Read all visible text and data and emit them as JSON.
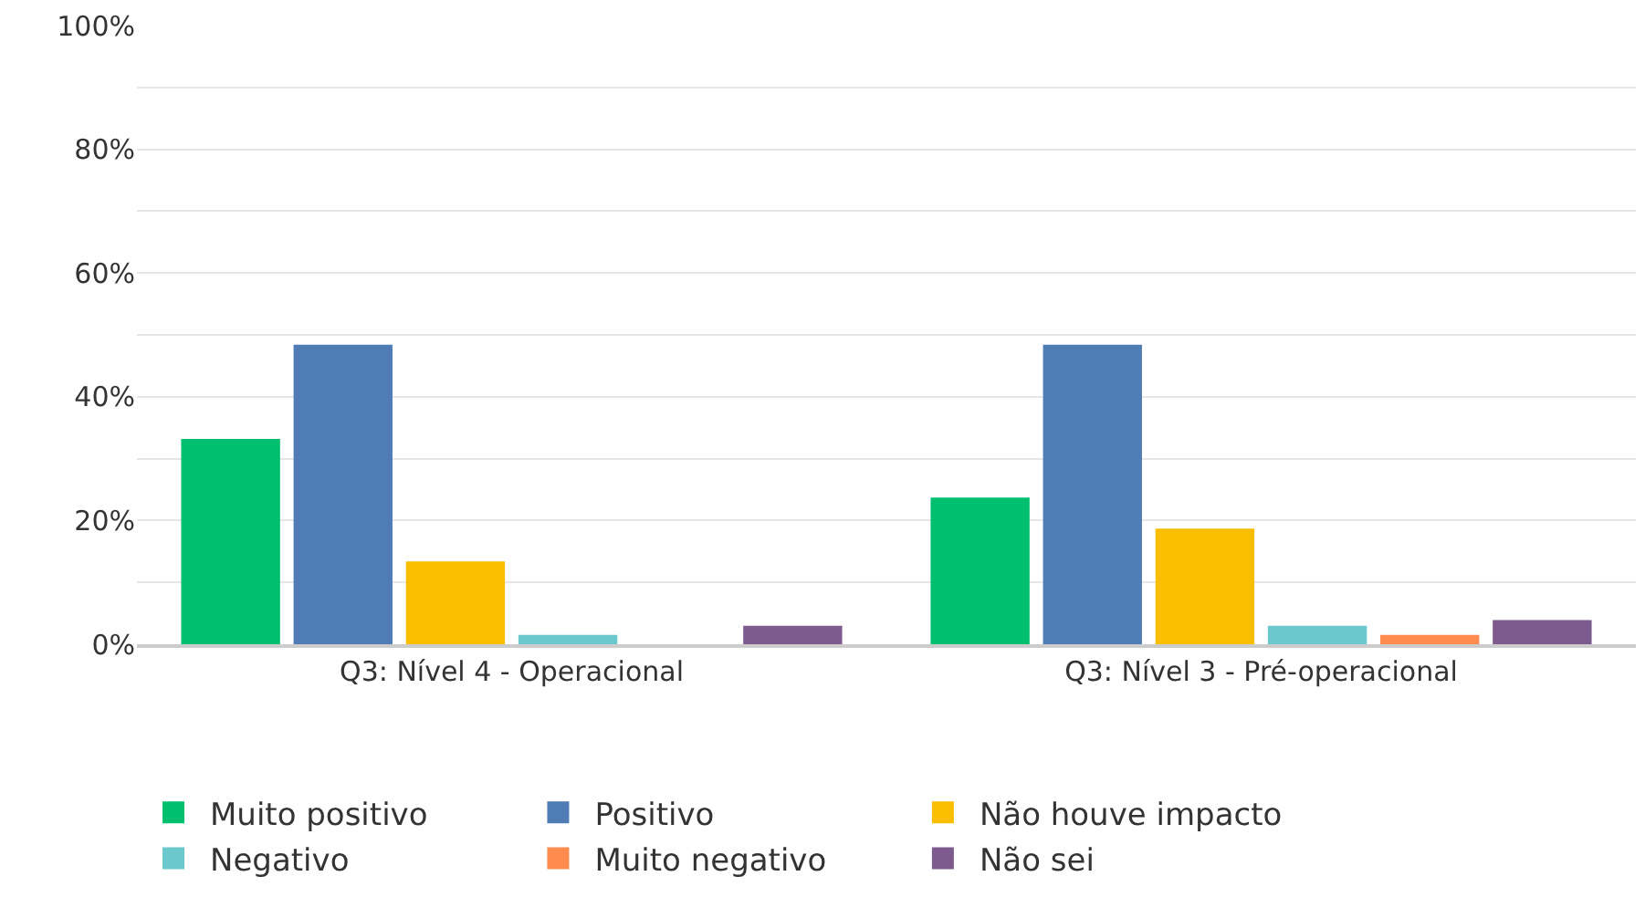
{
  "chart_data": {
    "type": "bar",
    "categories": [
      "Q3: Nível 4 - Operacional",
      "Q3: Nível 3 - Pré-operacional"
    ],
    "series": [
      {
        "name": "Muito positivo",
        "color": "#00bf6f",
        "values": [
          33.2,
          23.7
        ]
      },
      {
        "name": "Positivo",
        "color": "#507cb6",
        "values": [
          48.4,
          48.4
        ]
      },
      {
        "name": "Não houve impacto",
        "color": "#f9be00",
        "values": [
          13.4,
          18.7
        ]
      },
      {
        "name": "Negativo",
        "color": "#6bc8cd",
        "values": [
          1.5,
          3.0
        ]
      },
      {
        "name": "Muito negativo",
        "color": "#ff8b4f",
        "values": [
          0,
          1.5
        ]
      },
      {
        "name": "Não sei",
        "color": "#7d5b8f",
        "values": [
          3.0,
          3.9
        ]
      }
    ],
    "ylim": [
      0,
      100
    ],
    "yticks": [
      {
        "value": 0,
        "label": "0%"
      },
      {
        "value": 10,
        "label": null
      },
      {
        "value": 20,
        "label": "20%"
      },
      {
        "value": 30,
        "label": null
      },
      {
        "value": 40,
        "label": "40%"
      },
      {
        "value": 50,
        "label": null
      },
      {
        "value": 60,
        "label": "60%"
      },
      {
        "value": 70,
        "label": null
      },
      {
        "value": 80,
        "label": "80%"
      },
      {
        "value": 90,
        "label": null
      },
      {
        "value": 100,
        "label": "100%"
      }
    ],
    "grid": "y",
    "legend": "bottom"
  }
}
